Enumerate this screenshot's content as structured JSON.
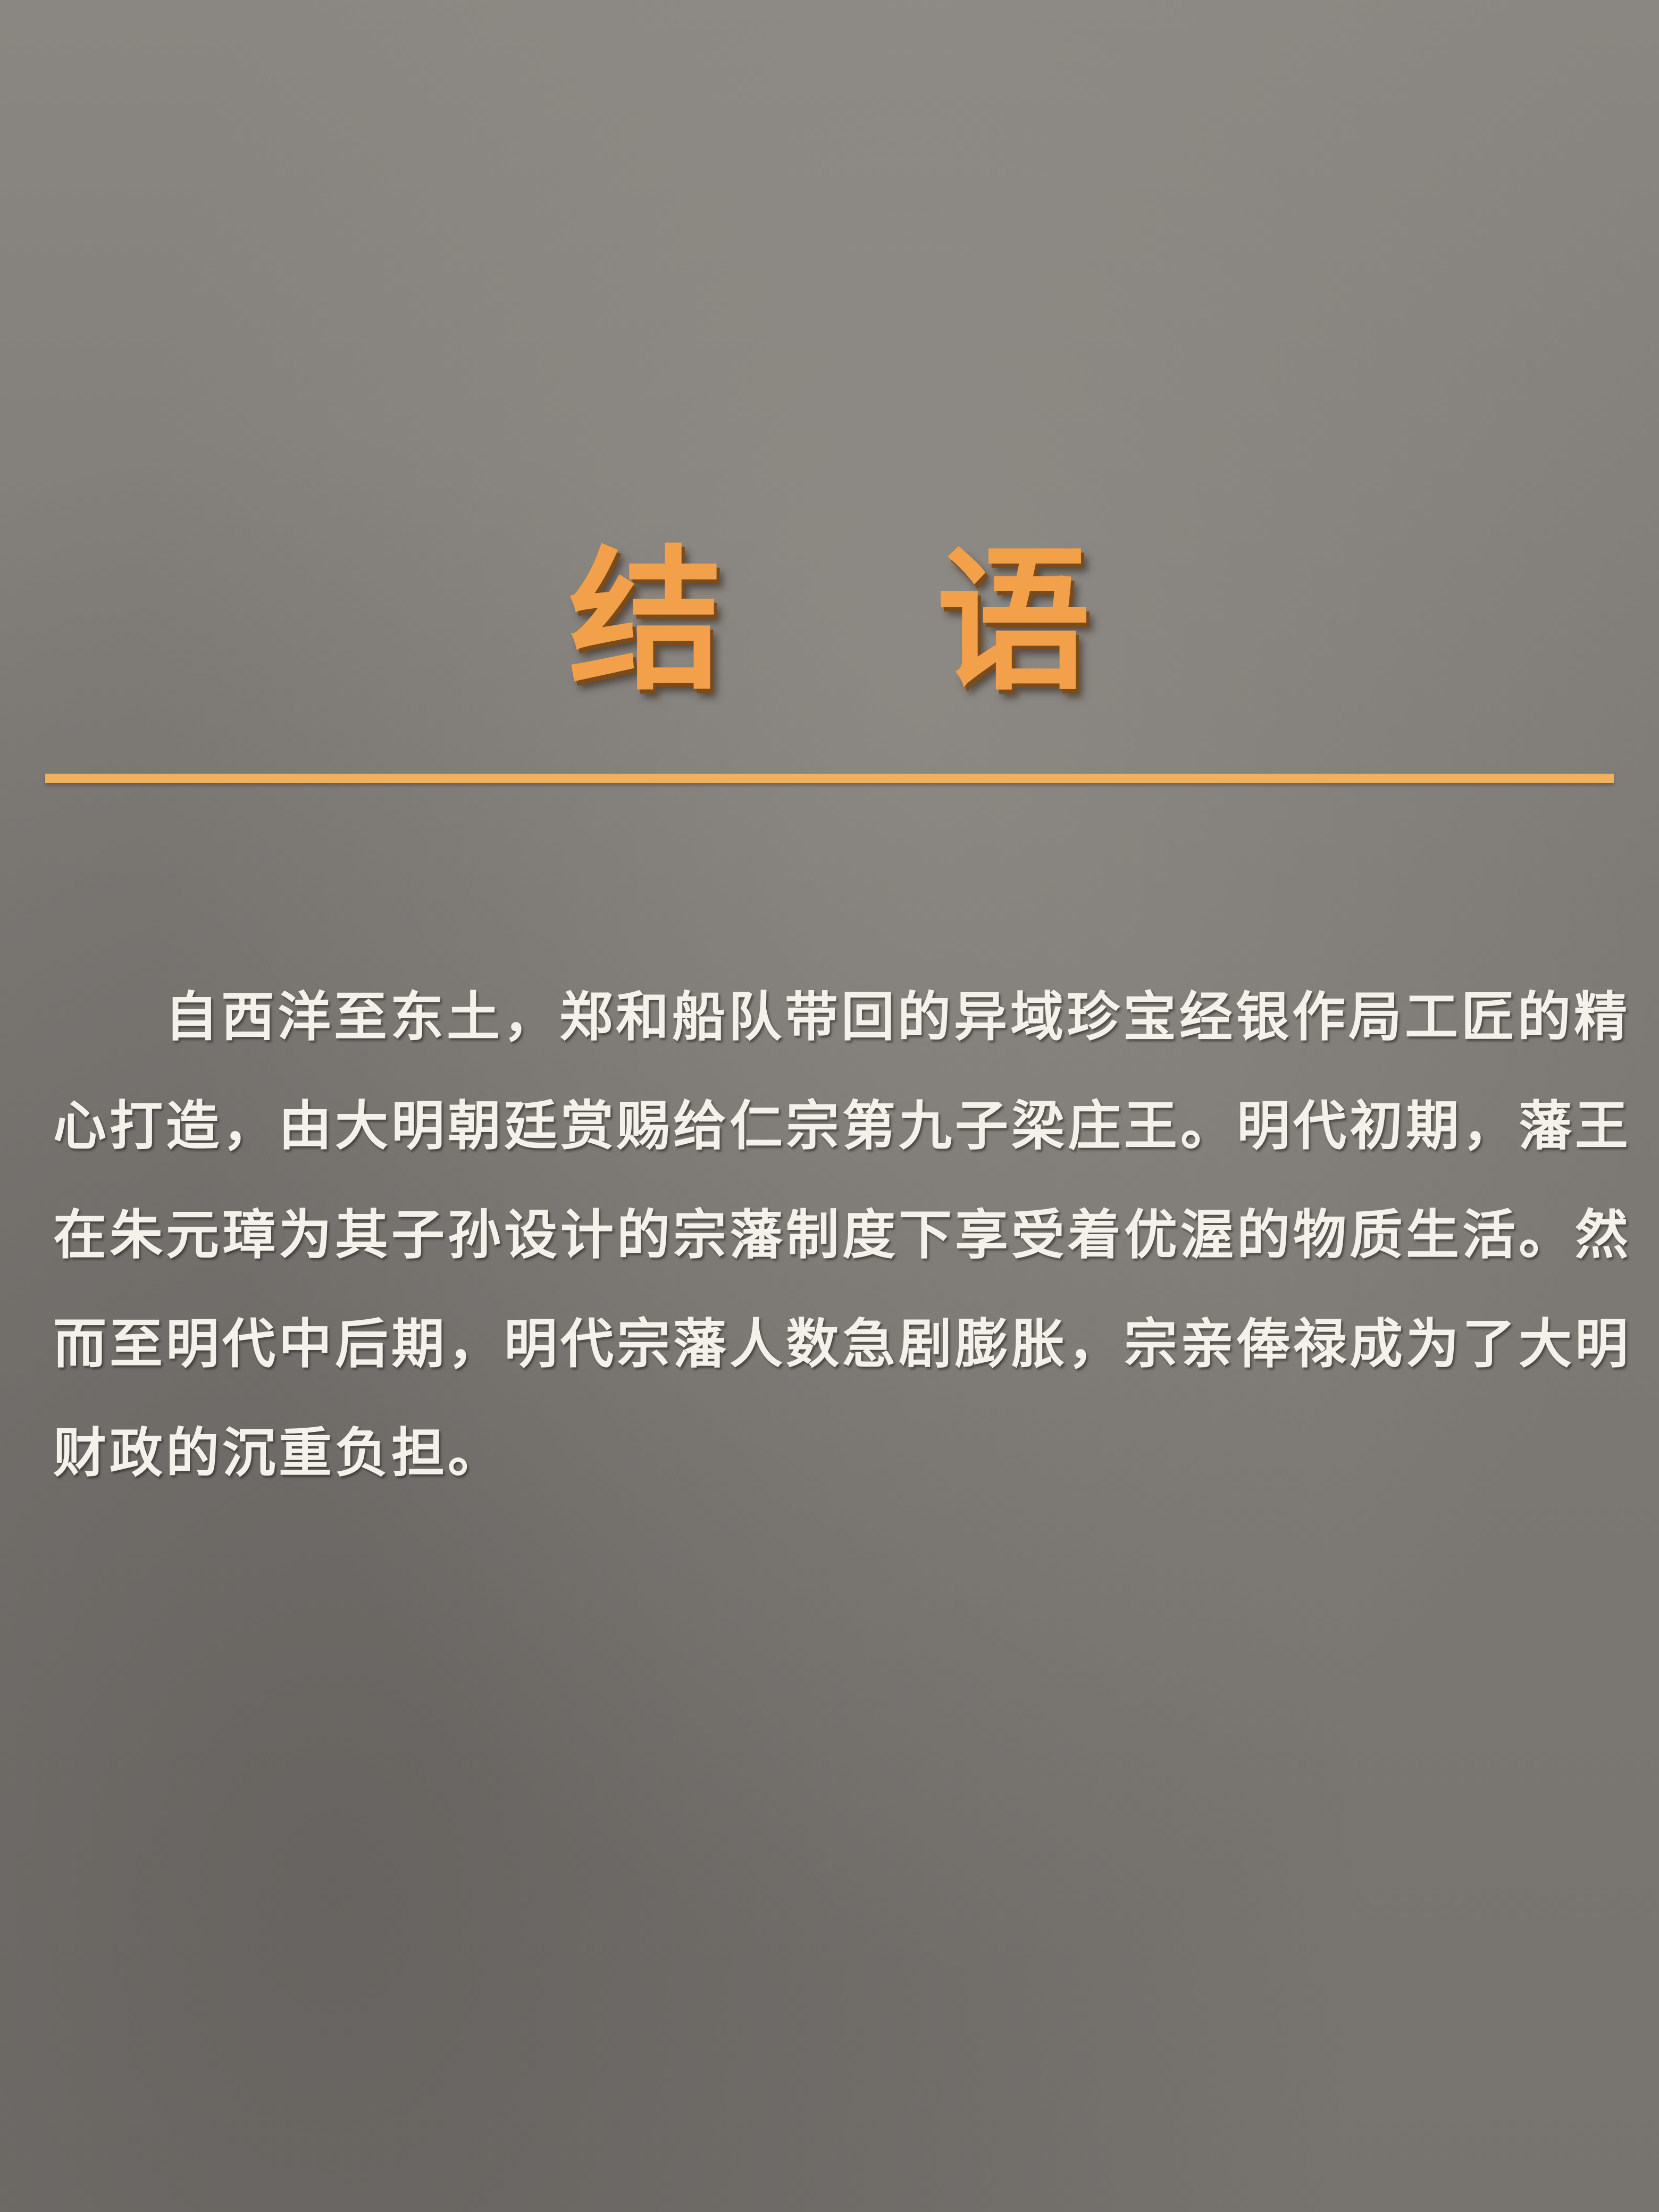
{
  "sign": {
    "title": "结 语",
    "paragraph_lines": [
      "自西洋至东土，郑和船队带回的异域珍宝经银作局工匠的精",
      "心打造，由大明朝廷赏赐给仁宗第九子梁庄王。明代初期，藩王",
      "在朱元璋为其子孙设计的宗藩制度下享受着优渥的物质生活。然",
      "而至明代中后期，明代宗藩人数急剧膨胀，宗亲俸禄成为了大明",
      "财政的沉重负担。"
    ],
    "colors": {
      "background": "#7b7875",
      "title": "#f2a14a",
      "rule": "#f0b060",
      "text": "#f4f1ea"
    }
  }
}
